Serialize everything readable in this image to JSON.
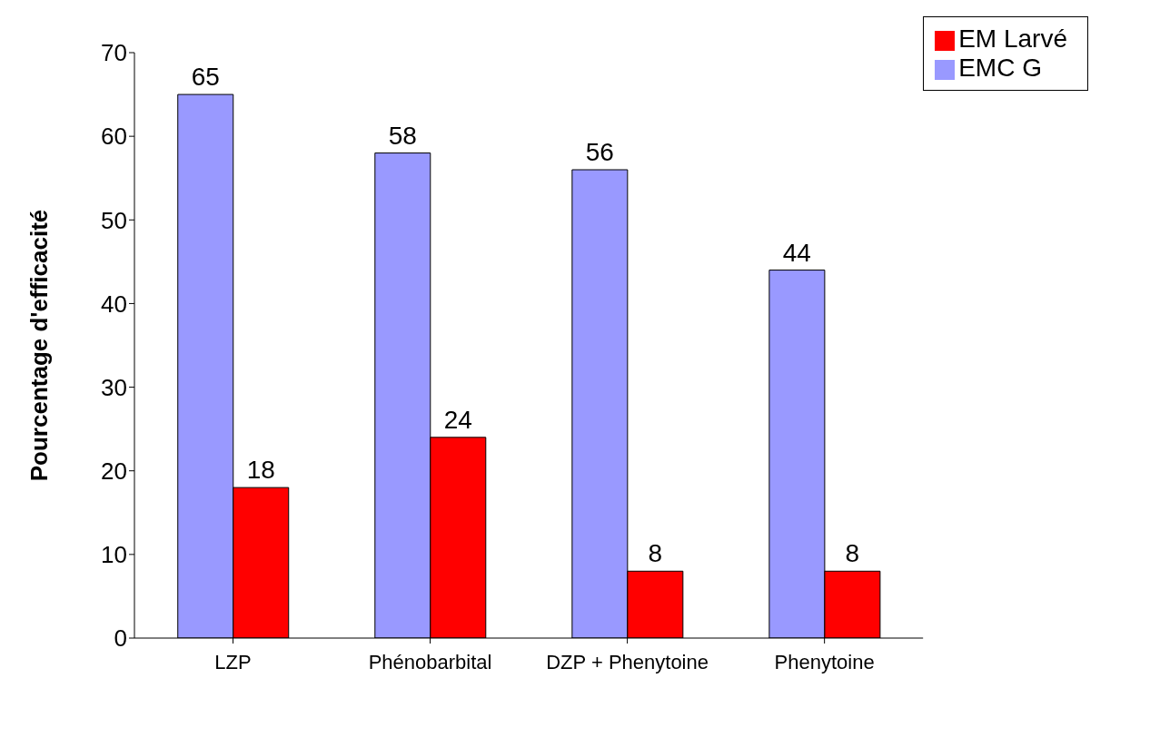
{
  "chart_data": {
    "type": "bar",
    "ylabel": "Pourcentage d'efficacité",
    "categories": [
      "LZP",
      "Phénobarbital",
      "DZP + Phenytoine",
      "Phenytoine"
    ],
    "series": [
      {
        "name": "EMC G",
        "color": "#9999ff",
        "values": [
          65,
          58,
          56,
          44
        ]
      },
      {
        "name": "EM Larvé",
        "color": "#ff0000",
        "values": [
          18,
          24,
          8,
          8
        ]
      }
    ],
    "ylim": [
      0,
      70
    ],
    "yticks": [
      0,
      10,
      20,
      30,
      40,
      50,
      60,
      70
    ],
    "grid": false,
    "legend": "top right",
    "data_labels": true
  }
}
